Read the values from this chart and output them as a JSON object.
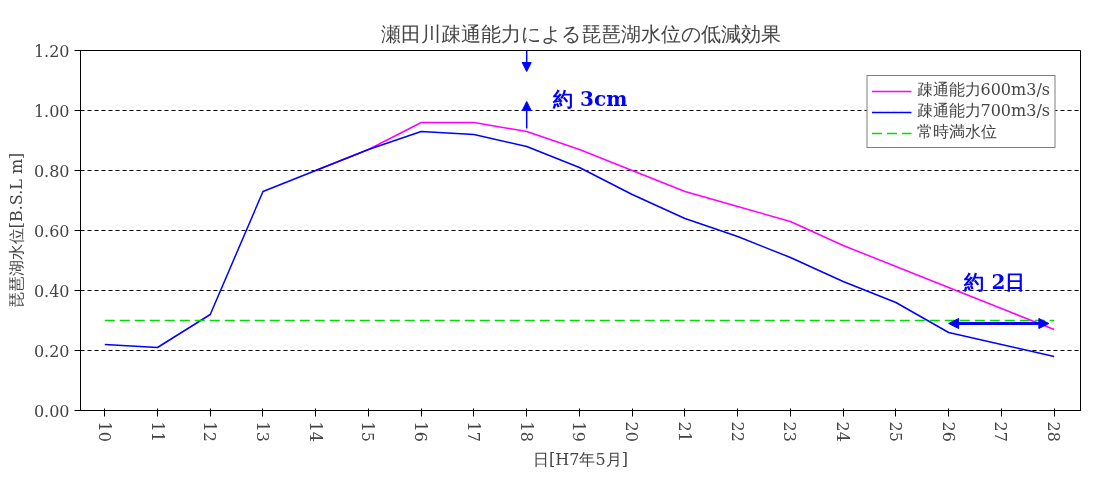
{
  "chart_data": {
    "type": "line",
    "title": "瀬田川疎通能力による琵琶湖水位の低減効果",
    "xlabel": "日[H7年5月]",
    "ylabel": "琵琶湖水位[B.S.L m]",
    "categories": [
      "10",
      "11",
      "12",
      "13",
      "14",
      "15",
      "16",
      "17",
      "18",
      "19",
      "20",
      "21",
      "22",
      "23",
      "24",
      "25",
      "26",
      "27",
      "28"
    ],
    "series": [
      {
        "name": "疎通能力600m3/s",
        "color": "#ff00ff",
        "values": [
          null,
          null,
          null,
          null,
          0.8,
          0.87,
          0.96,
          0.96,
          0.93,
          0.87,
          0.8,
          0.73,
          0.68,
          0.63,
          0.55,
          0.48,
          0.41,
          0.34,
          0.27
        ]
      },
      {
        "name": "疎通能力700m3/s",
        "color": "#0000ff",
        "values": [
          0.22,
          0.21,
          0.32,
          0.73,
          0.8,
          0.87,
          0.93,
          0.92,
          0.88,
          0.81,
          0.72,
          0.64,
          0.58,
          0.51,
          0.43,
          0.36,
          0.26,
          0.22,
          0.18
        ]
      },
      {
        "name": "常時満水位",
        "color": "#00dd00",
        "line_style": "dashed",
        "values": [
          0.3,
          0.3,
          0.3,
          0.3,
          0.3,
          0.3,
          0.3,
          0.3,
          0.3,
          0.3,
          0.3,
          0.3,
          0.3,
          0.3,
          0.3,
          0.3,
          0.3,
          0.3,
          0.3
        ]
      }
    ],
    "ylim": [
      0,
      1.2
    ],
    "yticks": [
      {
        "value": 0,
        "label": "0.00"
      },
      {
        "value": 0.2,
        "label": "0.20"
      },
      {
        "value": 0.4,
        "label": "0.40"
      },
      {
        "value": 0.6,
        "label": "0.60"
      },
      {
        "value": 0.8,
        "label": "0.80"
      },
      {
        "value": 1.0,
        "label": "1.00"
      },
      {
        "value": 1.2,
        "label": "1.20"
      }
    ],
    "grid": "y",
    "legend": "top right",
    "marker": "none",
    "line_style": "solid",
    "annotations": [
      "約 3cm",
      "約 2日"
    ]
  }
}
